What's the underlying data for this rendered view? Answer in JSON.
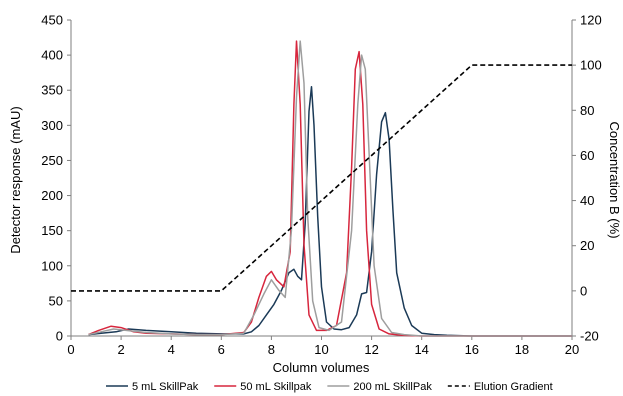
{
  "chart_data": {
    "type": "line",
    "xlabel": "Column volumes",
    "ylabel": "Detector response (mAU)",
    "y2label": "Concentration B (%)",
    "xlim": [
      0,
      20
    ],
    "ylim": [
      0,
      450
    ],
    "y2lim": [
      -20,
      120
    ],
    "xticks": [
      "0",
      "2",
      "4",
      "6",
      "8",
      "10",
      "12",
      "14",
      "16",
      "18",
      "20"
    ],
    "yticks": [
      "0",
      "50",
      "100",
      "150",
      "200",
      "250",
      "300",
      "350",
      "400",
      "450"
    ],
    "y2ticks": [
      "-20",
      "0",
      "20",
      "40",
      "60",
      "80",
      "100",
      "120"
    ],
    "grid": false,
    "legend_position": "bottom",
    "series": [
      {
        "name": "5 mL SkillPak",
        "axis": "left",
        "color": "#1b3a57",
        "x": [
          0.7,
          1.2,
          1.8,
          2.3,
          3.0,
          4.0,
          5.0,
          6.0,
          6.9,
          7.2,
          7.5,
          7.8,
          8.1,
          8.4,
          8.7,
          8.9,
          9.05,
          9.2,
          9.35,
          9.5,
          9.6,
          9.7,
          9.85,
          10.0,
          10.2,
          10.5,
          10.8,
          11.1,
          11.4,
          11.6,
          11.8,
          12.0,
          12.2,
          12.4,
          12.55,
          12.7,
          12.85,
          13.0,
          13.3,
          13.6,
          14.0,
          14.5,
          15.0,
          16.0,
          20.0
        ],
        "y": [
          2,
          4,
          6,
          10,
          8,
          6,
          4,
          3,
          3,
          6,
          15,
          30,
          45,
          65,
          90,
          95,
          85,
          80,
          160,
          320,
          355,
          300,
          170,
          70,
          20,
          10,
          9,
          12,
          30,
          60,
          62,
          120,
          230,
          305,
          318,
          280,
          180,
          90,
          40,
          15,
          4,
          2,
          1,
          0,
          0
        ]
      },
      {
        "name": "50 mL Skillpak",
        "axis": "left",
        "color": "#d7263d",
        "x": [
          0.7,
          1.1,
          1.6,
          2.0,
          2.5,
          3.0,
          4.0,
          5.0,
          6.0,
          6.9,
          7.2,
          7.5,
          7.8,
          8.0,
          8.2,
          8.5,
          8.75,
          8.9,
          9.0,
          9.15,
          9.3,
          9.5,
          9.8,
          10.2,
          10.6,
          11.0,
          11.2,
          11.35,
          11.5,
          11.65,
          11.8,
          12.0,
          12.3,
          12.7,
          13.2,
          14.0,
          15.0,
          20.0
        ],
        "y": [
          2,
          8,
          14,
          12,
          6,
          4,
          3,
          2,
          2,
          5,
          20,
          55,
          85,
          92,
          80,
          70,
          120,
          330,
          420,
          330,
          130,
          30,
          8,
          8,
          15,
          90,
          240,
          380,
          405,
          330,
          150,
          45,
          10,
          3,
          1,
          0,
          0,
          0
        ]
      },
      {
        "name": "200 mL SkillPak",
        "axis": "left",
        "color": "#9e9e9e",
        "x": [
          0.7,
          1.2,
          1.7,
          2.2,
          3.0,
          4.0,
          5.0,
          6.0,
          6.9,
          7.3,
          7.7,
          8.0,
          8.3,
          8.55,
          8.8,
          9.0,
          9.15,
          9.3,
          9.45,
          9.65,
          9.9,
          10.3,
          10.8,
          11.2,
          11.45,
          11.6,
          11.75,
          11.9,
          12.1,
          12.4,
          12.8,
          13.3,
          14.0,
          20.0
        ],
        "y": [
          2,
          6,
          10,
          8,
          5,
          3,
          2,
          2,
          4,
          30,
          60,
          80,
          65,
          55,
          150,
          340,
          420,
          360,
          170,
          50,
          12,
          8,
          20,
          150,
          330,
          400,
          380,
          260,
          100,
          25,
          5,
          2,
          0,
          0
        ]
      },
      {
        "name": "Elution Gradient",
        "axis": "right",
        "color": "#000000",
        "dash": true,
        "x": [
          0,
          6,
          16,
          20
        ],
        "y": [
          0,
          0,
          100,
          100
        ]
      }
    ]
  }
}
